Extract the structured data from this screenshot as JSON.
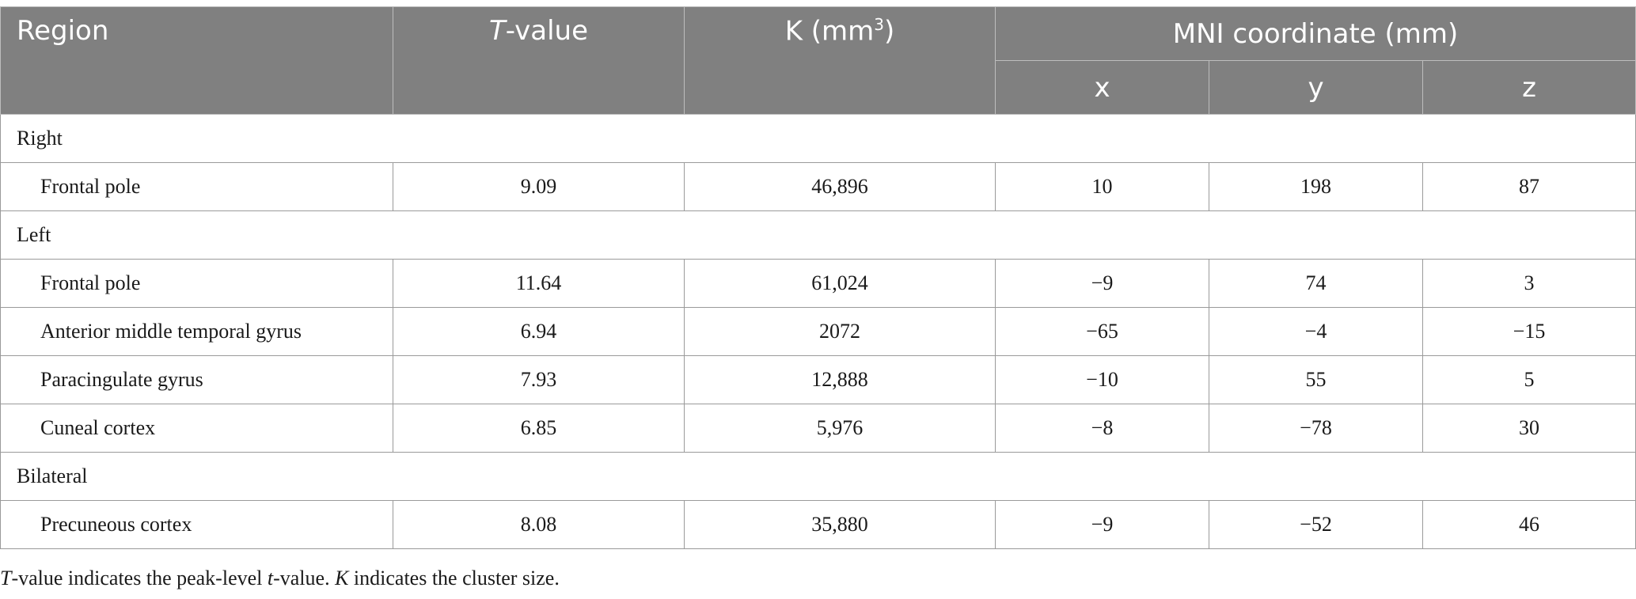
{
  "table": {
    "headers": {
      "region": "Region",
      "t_value_italic": "T",
      "t_value_rest": "-value",
      "k_label": "K (mm",
      "k_sup": "3",
      "k_close": ")",
      "mni": "MNI coordinate (mm)",
      "x": "x",
      "y": "y",
      "z": "z"
    },
    "groups": [
      {
        "label": "Right",
        "rows": [
          {
            "region": "Frontal pole",
            "t": "9.09",
            "k": "46,896",
            "x": "10",
            "y": "198",
            "z": "87"
          }
        ]
      },
      {
        "label": "Left",
        "rows": [
          {
            "region": "Frontal pole",
            "t": "11.64",
            "k": "61,024",
            "x": "−9",
            "y": "74",
            "z": "3"
          },
          {
            "region": "Anterior middle temporal gyrus",
            "t": "6.94",
            "k": "2072",
            "x": "−65",
            "y": "−4",
            "z": "−15"
          },
          {
            "region": "Paracingulate gyrus",
            "t": "7.93",
            "k": "12,888",
            "x": "−10",
            "y": "55",
            "z": "5"
          },
          {
            "region": "Cuneal cortex",
            "t": "6.85",
            "k": "5,976",
            "x": "−8",
            "y": "−78",
            "z": "30"
          }
        ]
      },
      {
        "label": "Bilateral",
        "rows": [
          {
            "region": "Precuneous cortex",
            "t": "8.08",
            "k": "35,880",
            "x": "−9",
            "y": "−52",
            "z": "46"
          }
        ]
      }
    ]
  },
  "footnote": {
    "t1": "T",
    "t2": "-value indicates the peak-level ",
    "t3": "t",
    "t4": "-value. ",
    "t5": "K",
    "t6": " indicates the cluster size."
  }
}
